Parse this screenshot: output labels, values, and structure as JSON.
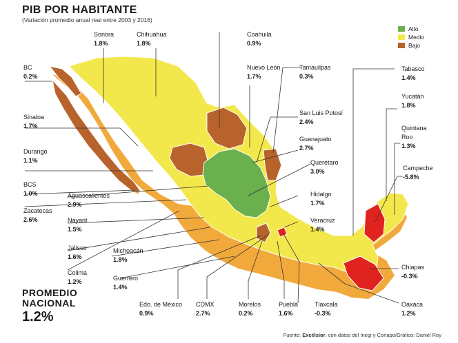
{
  "header": {
    "title": "PIB POR HABITANTE",
    "subtitle": "(Variación promedio anual real entre 2003 y 2016)"
  },
  "legend": {
    "items": [
      {
        "label": "Alto",
        "color": "#6ab04c"
      },
      {
        "label": "Medio",
        "color": "#f3e84b"
      },
      {
        "label": "Bajo",
        "color": "#b8632c"
      }
    ]
  },
  "states": {
    "sonora": {
      "name": "Sonora",
      "value": "1.8%",
      "level": "Medio"
    },
    "chihuahua": {
      "name": "Chihuahua",
      "value": "1.8%",
      "level": "Medio"
    },
    "coahuila": {
      "name": "Coahuila",
      "value": "0.9%",
      "level": "Bajo"
    },
    "bc": {
      "name": "BC",
      "value": "0.2%",
      "level": "Bajo"
    },
    "nuevo_leon": {
      "name": "Nuevo León",
      "value": "1.7%",
      "level": "Medio"
    },
    "tamaulipas": {
      "name": "Tamaulipas",
      "value": "0.3%",
      "level": "Bajo"
    },
    "tabasco": {
      "name": "Tabasco",
      "value": "1.4%",
      "level": "Medio"
    },
    "sinaloa": {
      "name": "Sinaloa",
      "value": "1.7%",
      "level": "Medio"
    },
    "slp": {
      "name": "San Luis Potosí",
      "value": "2.4%",
      "level": "Alto"
    },
    "yucatan": {
      "name": "Yucatán",
      "value": "1.8%",
      "level": "Medio"
    },
    "guanajuato": {
      "name": "Guanajuato",
      "value": "2.7%",
      "level": "Alto"
    },
    "quintana_roo": {
      "name_line1": "Quintana",
      "name_line2": "Roo",
      "value": "1.3%",
      "level": "Medio"
    },
    "durango": {
      "name": "Durango",
      "value": "1.1%",
      "level": "Bajo"
    },
    "queretaro": {
      "name": "Querétaro",
      "value": "3.0%",
      "level": "Alto"
    },
    "campeche": {
      "name": "Campeche",
      "value": "-5.8%",
      "level": "Bajo"
    },
    "bcs": {
      "name": "BCS",
      "value": "1.0%",
      "level": "Bajo"
    },
    "aguascalientes": {
      "name": "Aguascalientes",
      "value": "2.9%",
      "level": "Alto"
    },
    "hidalgo": {
      "name": "Hidalgo",
      "value": "1.7%",
      "level": "Medio"
    },
    "zacatecas": {
      "name": "Zacatecas",
      "value": "2.6%",
      "level": "Alto"
    },
    "nayarit": {
      "name": "Nayarit",
      "value": "1.5%",
      "level": "Medio"
    },
    "veracruz": {
      "name": "Veracruz",
      "value": "1.4%",
      "level": "Medio"
    },
    "jalisco": {
      "name": "Jalisco",
      "value": "1.6%",
      "level": "Medio"
    },
    "michoacan": {
      "name": "Michoacán",
      "value": "1.8%",
      "level": "Medio"
    },
    "colima": {
      "name": "Colima",
      "value": "1.2%",
      "level": "Medio"
    },
    "chiapas": {
      "name": "Chiapas",
      "value": "-0.3%",
      "level": "Bajo"
    },
    "guerrero": {
      "name": "Guerrero",
      "value": "1.4%",
      "level": "Medio"
    },
    "edomex": {
      "name": "Edo. de México",
      "value": "0.9%",
      "level": "Bajo"
    },
    "cdmx": {
      "name": "CDMX",
      "value": "2.7%",
      "level": "Alto"
    },
    "morelos": {
      "name": "Morelos",
      "value": "0.2%",
      "level": "Bajo"
    },
    "puebla": {
      "name": "Puebla",
      "value": "1.6%",
      "level": "Medio"
    },
    "tlaxcala": {
      "name": "Tlaxcala",
      "value": "-0.3%",
      "level": "Bajo"
    },
    "oaxaca": {
      "name": "Oaxaca",
      "value": "1.2%",
      "level": "Medio"
    }
  },
  "promedio": {
    "line1": "PROMEDIO",
    "line2": "NACIONAL",
    "value": "1.2%"
  },
  "footer": {
    "prefix": "Fuente: ",
    "source": "Excélsior",
    "rest": ", con datos del Inegi y Conapo/Gráfico: Daniel Rey"
  },
  "colors": {
    "medio": "#f3e84b",
    "bajo": "#b8632c",
    "alto": "#6ab04c",
    "negativo": "#e0231f",
    "shadow": "#f2a93c",
    "border": "#ffffff"
  }
}
